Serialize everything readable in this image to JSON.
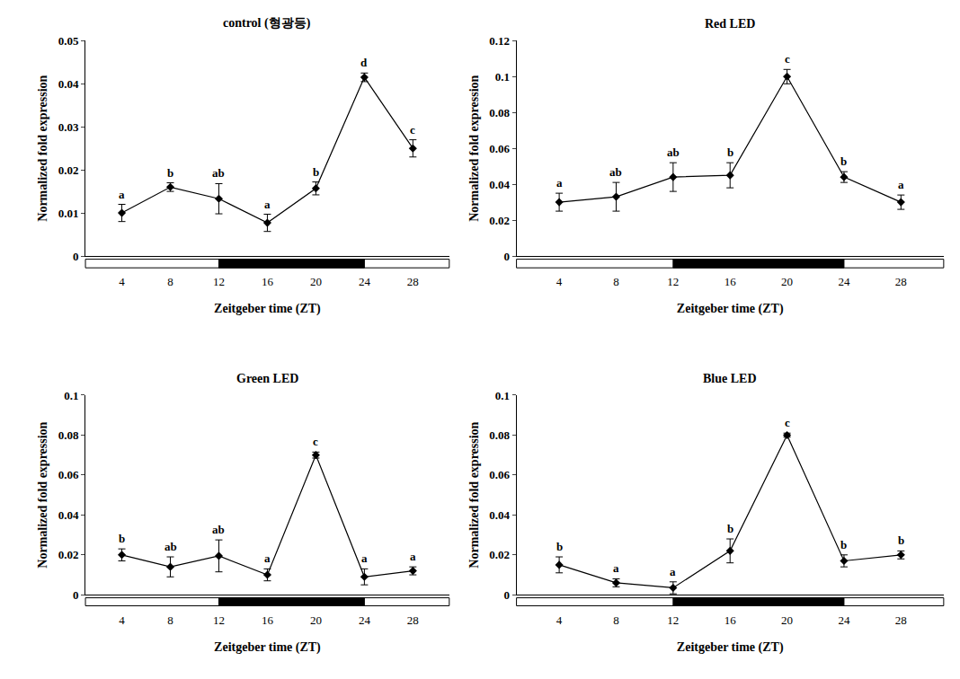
{
  "chart_data": [
    {
      "type": "line",
      "title": "control (형광등)",
      "color": "#000000",
      "marker": "diamond",
      "x_label": "Zeitgeber time (ZT)",
      "y_label": "Normalized fold expression",
      "x": [
        4,
        8,
        12,
        16,
        20,
        24,
        28
      ],
      "values": [
        0.01,
        0.016,
        0.0133,
        0.0077,
        0.0157,
        0.0415,
        0.025
      ],
      "errors": [
        0.002,
        0.001,
        0.0035,
        0.002,
        0.0015,
        0.001,
        0.002
      ],
      "annotations": [
        "a",
        "b",
        "ab",
        "a",
        "b",
        "d",
        "c"
      ],
      "dark_period": [
        12,
        24
      ],
      "xlim": [
        1,
        31
      ],
      "xticks": [
        4,
        8,
        12,
        16,
        20,
        24,
        28
      ],
      "ylim": [
        0,
        0.05
      ],
      "yticks": [
        0,
        0.01,
        0.02,
        0.03,
        0.04,
        0.05
      ],
      "grid": false
    },
    {
      "type": "line",
      "title": "Red LED",
      "color": "#000000",
      "marker": "diamond",
      "x_label": "Zeitgeber time (ZT)",
      "y_label": "Normalized fold expression",
      "x": [
        4,
        8,
        12,
        16,
        20,
        24,
        28
      ],
      "values": [
        0.03,
        0.033,
        0.044,
        0.045,
        0.1,
        0.044,
        0.03
      ],
      "errors": [
        0.005,
        0.008,
        0.008,
        0.007,
        0.004,
        0.003,
        0.004
      ],
      "annotations": [
        "a",
        "ab",
        "ab",
        "b",
        "c",
        "b",
        "a"
      ],
      "dark_period": [
        12,
        24
      ],
      "xlim": [
        1,
        31
      ],
      "xticks": [
        4,
        8,
        12,
        16,
        20,
        24,
        28
      ],
      "ylim": [
        0,
        0.12
      ],
      "yticks": [
        0,
        0.02,
        0.04,
        0.06,
        0.08,
        0.1,
        0.12
      ],
      "grid": false
    },
    {
      "type": "line",
      "title": "Green LED",
      "color": "#000000",
      "marker": "diamond",
      "x_label": "Zeitgeber time (ZT)",
      "y_label": "Normalized fold expression",
      "x": [
        4,
        8,
        12,
        16,
        20,
        24,
        28
      ],
      "values": [
        0.02,
        0.014,
        0.0195,
        0.01,
        0.07,
        0.009,
        0.012
      ],
      "errors": [
        0.003,
        0.005,
        0.008,
        0.003,
        0.0015,
        0.004,
        0.002
      ],
      "annotations": [
        "b",
        "ab",
        "ab",
        "a",
        "c",
        "a",
        "a"
      ],
      "dark_period": [
        12,
        24
      ],
      "xlim": [
        1,
        31
      ],
      "xticks": [
        4,
        8,
        12,
        16,
        20,
        24,
        28
      ],
      "ylim": [
        0,
        0.1
      ],
      "yticks": [
        0,
        0.02,
        0.04,
        0.06,
        0.08,
        0.1
      ],
      "grid": false
    },
    {
      "type": "line",
      "title": "Blue LED",
      "color": "#000000",
      "marker": "diamond",
      "x_label": "Zeitgeber time (ZT)",
      "y_label": "Normalized fold expression",
      "x": [
        4,
        8,
        12,
        16,
        20,
        24,
        28
      ],
      "values": [
        0.015,
        0.006,
        0.0035,
        0.022,
        0.08,
        0.017,
        0.02
      ],
      "errors": [
        0.004,
        0.002,
        0.003,
        0.006,
        0.001,
        0.003,
        0.002
      ],
      "annotations": [
        "b",
        "a",
        "a",
        "b",
        "c",
        "b",
        "b"
      ],
      "dark_period": [
        12,
        24
      ],
      "xlim": [
        1,
        31
      ],
      "xticks": [
        4,
        8,
        12,
        16,
        20,
        24,
        28
      ],
      "ylim": [
        0,
        0.1
      ],
      "yticks": [
        0,
        0.02,
        0.04,
        0.06,
        0.08,
        0.1
      ],
      "grid": false
    }
  ]
}
